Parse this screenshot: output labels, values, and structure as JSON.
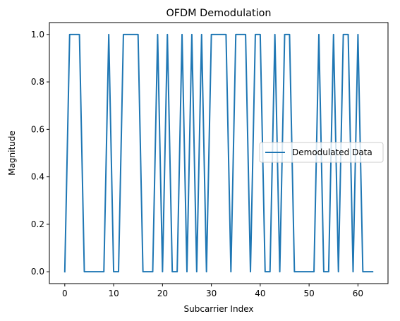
{
  "chart_data": {
    "type": "line",
    "title": "OFDM Demodulation",
    "xlabel": "Subcarrier Index",
    "ylabel": "Magnitude",
    "xlim": [
      -3.15,
      66.15
    ],
    "ylim": [
      -0.05,
      1.05
    ],
    "xticks": [
      0,
      10,
      20,
      30,
      40,
      50,
      60
    ],
    "xtick_labels": [
      "0",
      "10",
      "20",
      "30",
      "40",
      "50",
      "60"
    ],
    "yticks": [
      0.0,
      0.2,
      0.4,
      0.6,
      0.8,
      1.0
    ],
    "ytick_labels": [
      "0.0",
      "0.2",
      "0.4",
      "0.6",
      "0.8",
      "1.0"
    ],
    "grid": false,
    "legend_position": "center-right",
    "series": [
      {
        "name": "Demodulated Data",
        "color": "#1f77b4",
        "x": [
          0,
          1,
          2,
          3,
          4,
          5,
          6,
          7,
          8,
          9,
          10,
          11,
          12,
          13,
          14,
          15,
          16,
          17,
          18,
          19,
          20,
          21,
          22,
          23,
          24,
          25,
          26,
          27,
          28,
          29,
          30,
          31,
          32,
          33,
          34,
          35,
          36,
          37,
          38,
          39,
          40,
          41,
          42,
          43,
          44,
          45,
          46,
          47,
          48,
          49,
          50,
          51,
          52,
          53,
          54,
          55,
          56,
          57,
          58,
          59,
          60,
          61,
          62,
          63
        ],
        "values": [
          0,
          1,
          1,
          1,
          0,
          0,
          0,
          0,
          0,
          1,
          0,
          0,
          1,
          1,
          1,
          1,
          0,
          0,
          0,
          1,
          0,
          1,
          0,
          0,
          1,
          0,
          1,
          0,
          1,
          0,
          1,
          1,
          1,
          1,
          0,
          1,
          1,
          1,
          0,
          1,
          1,
          0,
          0,
          1,
          0,
          1,
          1,
          0,
          0,
          0,
          0,
          0,
          1,
          0,
          0,
          1,
          0,
          1,
          1,
          0,
          1,
          0,
          0,
          0
        ]
      }
    ]
  }
}
